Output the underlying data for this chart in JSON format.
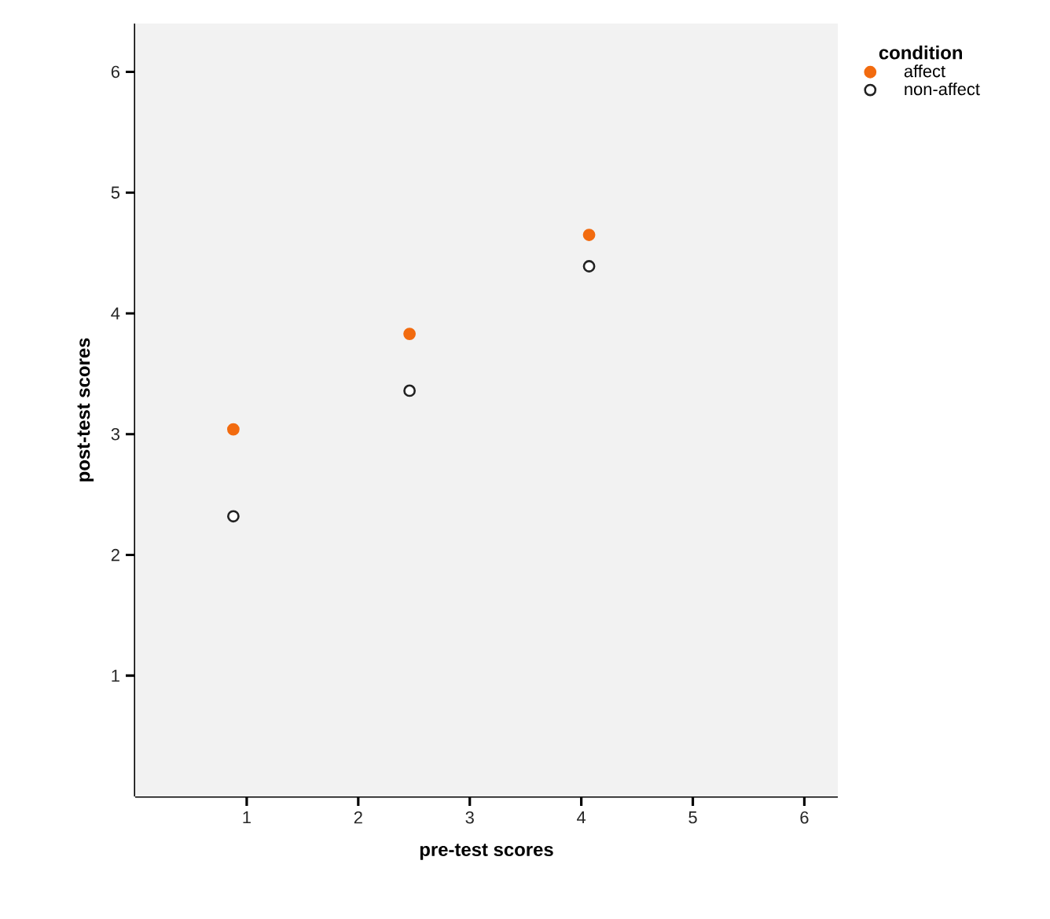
{
  "chart_data": {
    "type": "scatter",
    "xlabel": "pre-test scores",
    "ylabel": "post-test scores",
    "legend_title": "condition",
    "xlim": [
      0,
      6.3
    ],
    "ylim": [
      0,
      6.4
    ],
    "xticks": [
      1,
      2,
      3,
      4,
      5,
      6
    ],
    "yticks": [
      1,
      2,
      3,
      4,
      5,
      6
    ],
    "legend": "top right",
    "marker": "circle",
    "series": [
      {
        "name": "affect",
        "color": "#f26b0f",
        "x": [
          0.88,
          2.46,
          4.07
        ],
        "values": [
          3.04,
          3.83,
          4.65
        ]
      },
      {
        "name": "non-affect",
        "color": "#222222",
        "x": [
          0.88,
          2.46,
          4.07
        ],
        "values": [
          2.32,
          3.36,
          4.39
        ]
      }
    ]
  }
}
